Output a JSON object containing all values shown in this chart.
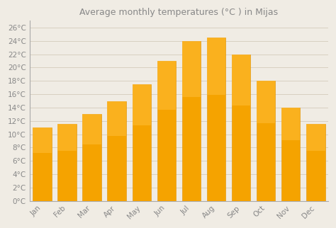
{
  "title": "Average monthly temperatures (°C ) in Mijas",
  "months": [
    "Jan",
    "Feb",
    "Mar",
    "Apr",
    "May",
    "Jun",
    "Jul",
    "Aug",
    "Sep",
    "Oct",
    "Nov",
    "Dec"
  ],
  "values": [
    11.0,
    11.5,
    13.0,
    15.0,
    17.5,
    21.0,
    24.0,
    24.5,
    22.0,
    18.0,
    14.0,
    11.5
  ],
  "bar_color_top": "#FFBB33",
  "bar_color_bottom": "#F5A300",
  "bar_edge_color": "#E09000",
  "background_color": "#f0ece4",
  "plot_bg_color": "#f0ece4",
  "grid_color": "#d8d0c0",
  "ylim": [
    0,
    27
  ],
  "yticks": [
    0,
    2,
    4,
    6,
    8,
    10,
    12,
    14,
    16,
    18,
    20,
    22,
    24,
    26
  ],
  "title_fontsize": 9,
  "tick_fontsize": 7.5,
  "tick_color": "#888888",
  "title_color": "#888888",
  "bar_width": 0.75
}
